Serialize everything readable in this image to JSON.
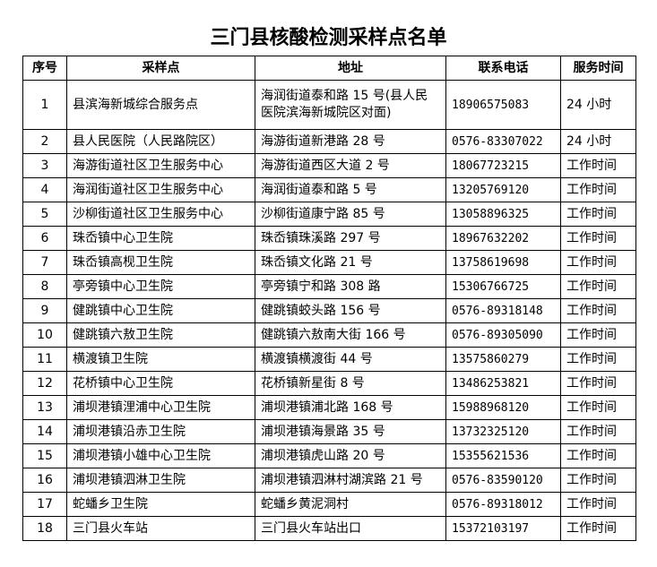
{
  "title": "三门县核酸检测采样点名单",
  "table": {
    "headers": [
      "序号",
      "采样点",
      "地址",
      "联系电话",
      "服务时间"
    ],
    "rows": [
      [
        "1",
        "县滨海新城综合服务点",
        "海润街道泰和路 15 号(县人民医院滨海新城院区对面)",
        "18906575083",
        "24 小时"
      ],
      [
        "2",
        "县人民医院（人民路院区）",
        "海游街道新港路 28 号",
        "0576-83307022",
        "24 小时"
      ],
      [
        "3",
        "海游街道社区卫生服务中心",
        "海游街道西区大道 2 号",
        "18067723215",
        "工作时间"
      ],
      [
        "4",
        "海润街道社区卫生服务中心",
        "海润街道泰和路 5 号",
        "13205769120",
        "工作时间"
      ],
      [
        "5",
        "沙柳街道社区卫生服务中心",
        "沙柳街道康宁路 85 号",
        "13058896325",
        "工作时间"
      ],
      [
        "6",
        "珠岙镇中心卫生院",
        "珠岙镇珠溪路 297 号",
        "18967632202",
        "工作时间"
      ],
      [
        "7",
        "珠岙镇高枧卫生院",
        "珠岙镇文化路 21 号",
        "13758619698",
        "工作时间"
      ],
      [
        "8",
        "亭旁镇中心卫生院",
        "亭旁镇宁和路 308 路",
        "15306766725",
        "工作时间"
      ],
      [
        "9",
        "健跳镇中心卫生院",
        "健跳镇蛟头路 156 号",
        "0576-89318148",
        "工作时间"
      ],
      [
        "10",
        "健跳镇六敖卫生院",
        "健跳镇六敖南大街 166 号",
        "0576-89305090",
        "工作时间"
      ],
      [
        "11",
        "横渡镇卫生院",
        "横渡镇横渡街 44 号",
        "13575860279",
        "工作时间"
      ],
      [
        "12",
        "花桥镇中心卫生院",
        "花桥镇新星街 8 号",
        "13486253821",
        "工作时间"
      ],
      [
        "13",
        "浦坝港镇浬浦中心卫生院",
        "浦坝港镇浦北路 168 号",
        "15988968120",
        "工作时间"
      ],
      [
        "14",
        "浦坝港镇沿赤卫生院",
        "浦坝港镇海景路 35 号",
        "13732325120",
        "工作时间"
      ],
      [
        "15",
        "浦坝港镇小雄中心卫生院",
        "浦坝港镇虎山路 20 号",
        "15355621536",
        "工作时间"
      ],
      [
        "16",
        "浦坝港镇泗淋卫生院",
        "浦坝港镇泗淋村湖滨路 21 号",
        "0576-83590120",
        "工作时间"
      ],
      [
        "17",
        "蛇蟠乡卫生院",
        "蛇蟠乡黄泥洞村",
        "0576-89318012",
        "工作时间"
      ],
      [
        "18",
        "三门县火车站",
        "三门县火车站出口",
        "15372103197",
        "工作时间"
      ]
    ]
  }
}
